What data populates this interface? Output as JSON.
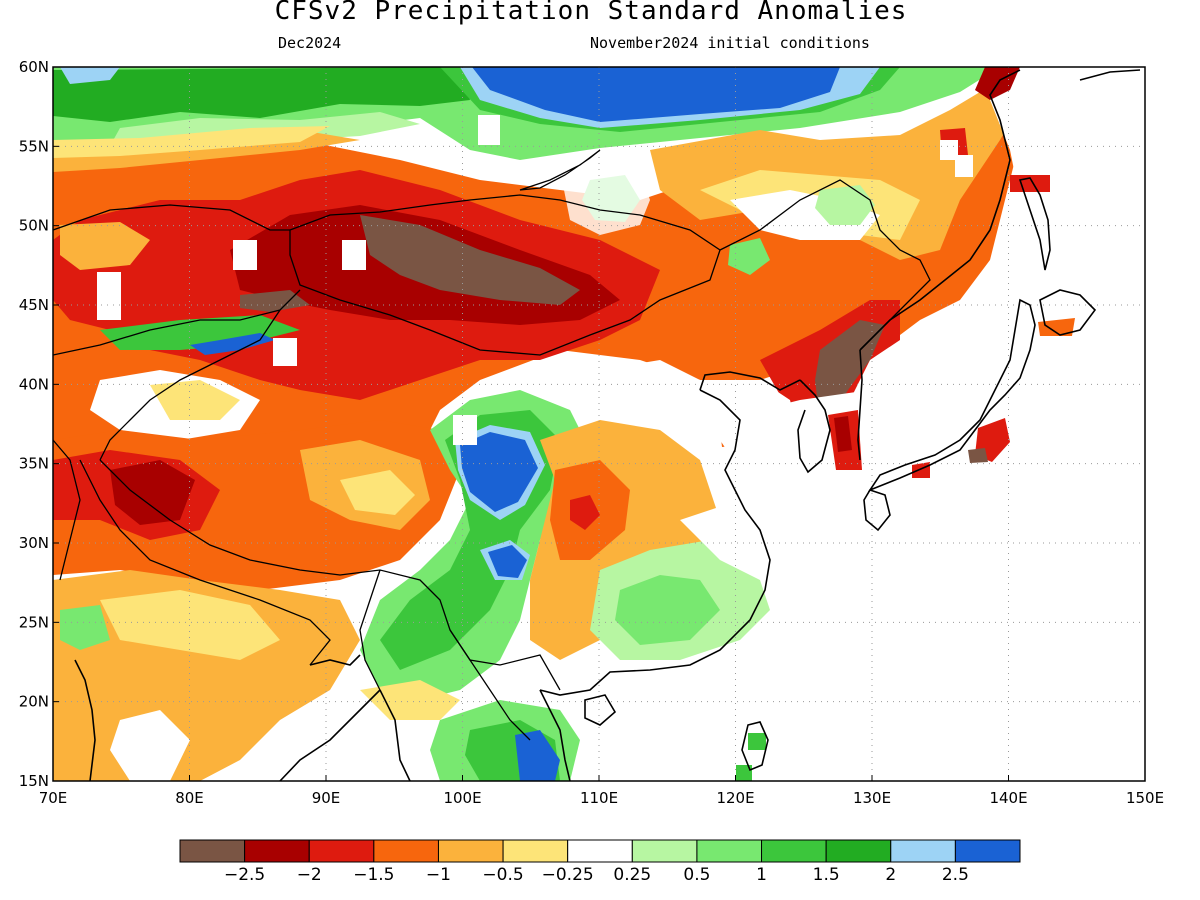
{
  "title": "CFSv2 Precipitation Standard Anomalies",
  "valid_month": "Dec2024",
  "initial_conditions": "November2024 initial conditions",
  "axes": {
    "lon_range": [
      70,
      150
    ],
    "lat_range": [
      15,
      60
    ],
    "lon_ticks": [
      "70E",
      "80E",
      "90E",
      "100E",
      "110E",
      "120E",
      "130E",
      "140E",
      "150E"
    ],
    "lat_ticks": [
      "15N",
      "20N",
      "25N",
      "30N",
      "35N",
      "40N",
      "45N",
      "50N",
      "55N",
      "60N"
    ],
    "grid": true
  },
  "colorbar": {
    "colors": [
      "#7a5544",
      "#a80000",
      "#de1b0f",
      "#f7660d",
      "#fbb23c",
      "#fde478",
      "#ffffff",
      "#b7f6a2",
      "#78e870",
      "#3cc63c",
      "#22ac22",
      "#9dd3f5",
      "#1a62d4"
    ],
    "labels": [
      "−2.5",
      "−2",
      "−1.5",
      "−1",
      "−0.5",
      "−0.25",
      "0.25",
      "0.5",
      "1",
      "1.5",
      "2",
      "2.5"
    ]
  },
  "colors": {
    "background": "#ffffff",
    "coastline": "#000000",
    "gridline": "#9a9a9a"
  }
}
